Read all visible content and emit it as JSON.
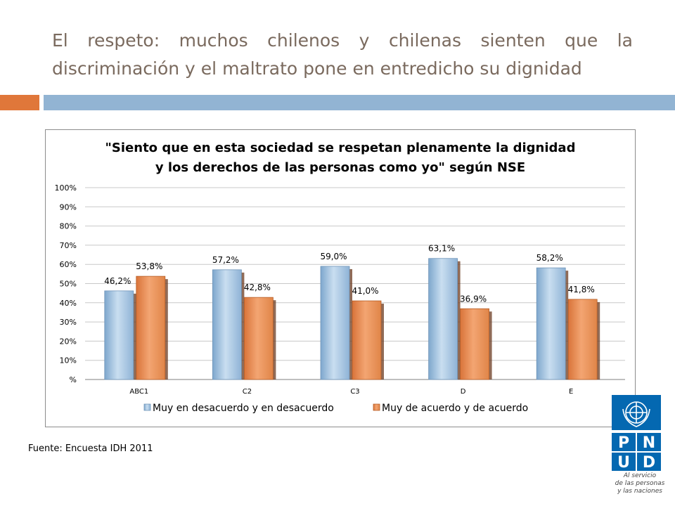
{
  "slide": {
    "title": "El respeto: muchos chilenos y chilenas sienten que la discriminación y el maltrato pone en entredicho su dignidad",
    "source": "Fuente: Encuesta IDH 2011"
  },
  "colors": {
    "accent_orange": "#e0773a",
    "accent_blue": "#92b4d3",
    "series_blue": "#9dc3e6",
    "series_orange": "#e8894a"
  },
  "chart_data": {
    "type": "bar",
    "title_lines": [
      "\"Siento que en esta sociedad se respetan plenamente la dignidad",
      "y los derechos de las personas como yo\" según NSE"
    ],
    "categories": [
      "ABC1",
      "C2",
      "C3",
      "D",
      "E"
    ],
    "series": [
      {
        "name": "Muy en desacuerdo y en desacuerdo",
        "values": [
          46.2,
          57.2,
          59.0,
          63.1,
          58.2
        ],
        "labels": [
          "46,2%",
          "57,2%",
          "59,0%",
          "63,1%",
          "58,2%"
        ]
      },
      {
        "name": "Muy de acuerdo y de acuerdo",
        "values": [
          53.8,
          42.8,
          41.0,
          36.9,
          41.8
        ],
        "labels": [
          "53,8%",
          "42,8%",
          "41,0%",
          "36,9%",
          "41,8%"
        ]
      }
    ],
    "y_ticks": [
      "%",
      "10%",
      "20%",
      "30%",
      "40%",
      "50%",
      "60%",
      "70%",
      "80%",
      "90%",
      "100%"
    ],
    "ylim": [
      0,
      100
    ],
    "grid": true,
    "legend_position": "bottom"
  },
  "logo": {
    "letters": [
      "P",
      "N",
      "U",
      "D"
    ],
    "tagline_lines": [
      "Al servicio",
      "de las personas",
      "y las naciones"
    ]
  }
}
